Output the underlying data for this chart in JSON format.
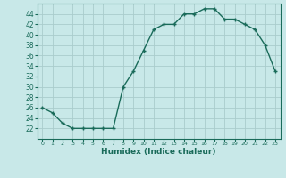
{
  "x": [
    0,
    1,
    2,
    3,
    4,
    5,
    6,
    7,
    8,
    9,
    10,
    11,
    12,
    13,
    14,
    15,
    16,
    17,
    18,
    19,
    20,
    21,
    22,
    23
  ],
  "y": [
    26,
    25,
    23,
    22,
    22,
    22,
    22,
    22,
    30,
    33,
    37,
    41,
    42,
    42,
    44,
    44,
    45,
    45,
    43,
    43,
    42,
    41,
    38,
    33
  ],
  "line_color": "#1a6b5a",
  "marker_color": "#1a6b5a",
  "bg_color": "#c8e8e8",
  "grid_color": "#aacccc",
  "xlabel": "Humidex (Indice chaleur)",
  "xlabel_color": "#1a6b5a",
  "ylim": [
    20,
    46
  ],
  "xlim": [
    -0.5,
    23.5
  ],
  "yticks": [
    22,
    24,
    26,
    28,
    30,
    32,
    34,
    36,
    38,
    40,
    42,
    44
  ],
  "xticks": [
    0,
    1,
    2,
    3,
    4,
    5,
    6,
    7,
    8,
    9,
    10,
    11,
    12,
    13,
    14,
    15,
    16,
    17,
    18,
    19,
    20,
    21,
    22,
    23
  ],
  "tick_color": "#1a6b5a",
  "spine_color": "#1a6b5a",
  "marker_size": 3,
  "linewidth": 1.0
}
